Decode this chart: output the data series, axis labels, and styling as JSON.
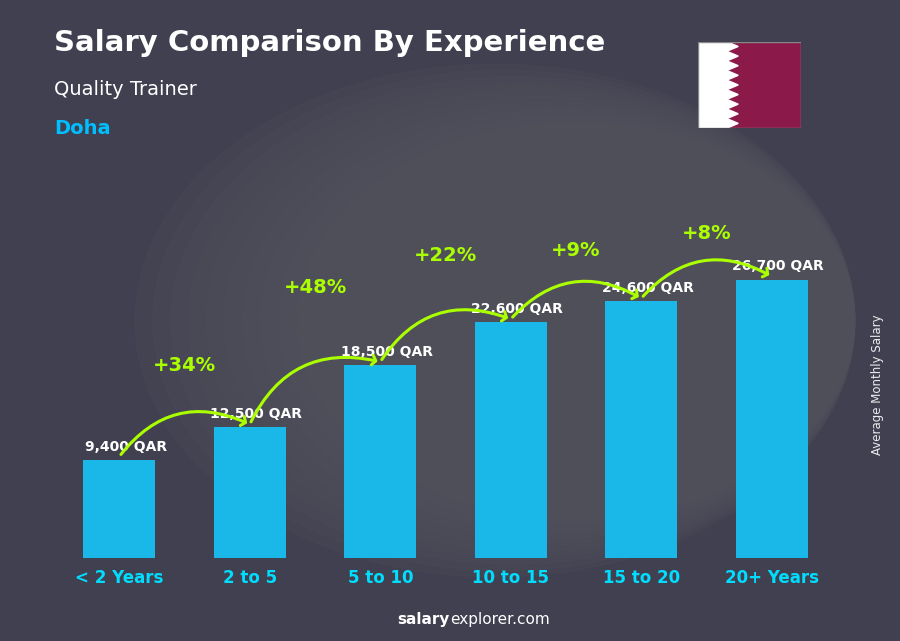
{
  "title": "Salary Comparison By Experience",
  "subtitle": "Quality Trainer",
  "city": "Doha",
  "ylabel": "Average Monthly Salary",
  "footer_bold": "salary",
  "footer_plain": "explorer.com",
  "categories": [
    "< 2 Years",
    "2 to 5",
    "5 to 10",
    "10 to 15",
    "15 to 20",
    "20+ Years"
  ],
  "values": [
    9400,
    12500,
    18500,
    22600,
    24600,
    26700
  ],
  "labels": [
    "9,400 QAR",
    "12,500 QAR",
    "18,500 QAR",
    "22,600 QAR",
    "24,600 QAR",
    "26,700 QAR"
  ],
  "pct_changes": [
    "+34%",
    "+48%",
    "+22%",
    "+9%",
    "+8%"
  ],
  "bar_color": "#1ab8e8",
  "pct_color": "#aaff00",
  "title_color": "#FFFFFF",
  "subtitle_color": "#FFFFFF",
  "city_color": "#00BFFF",
  "label_color": "#FFFFFF",
  "bg_color": "#3a3a4a",
  "ylim_max": 32000,
  "flag_white": "#FFFFFF",
  "flag_maroon": "#8B1A4A"
}
